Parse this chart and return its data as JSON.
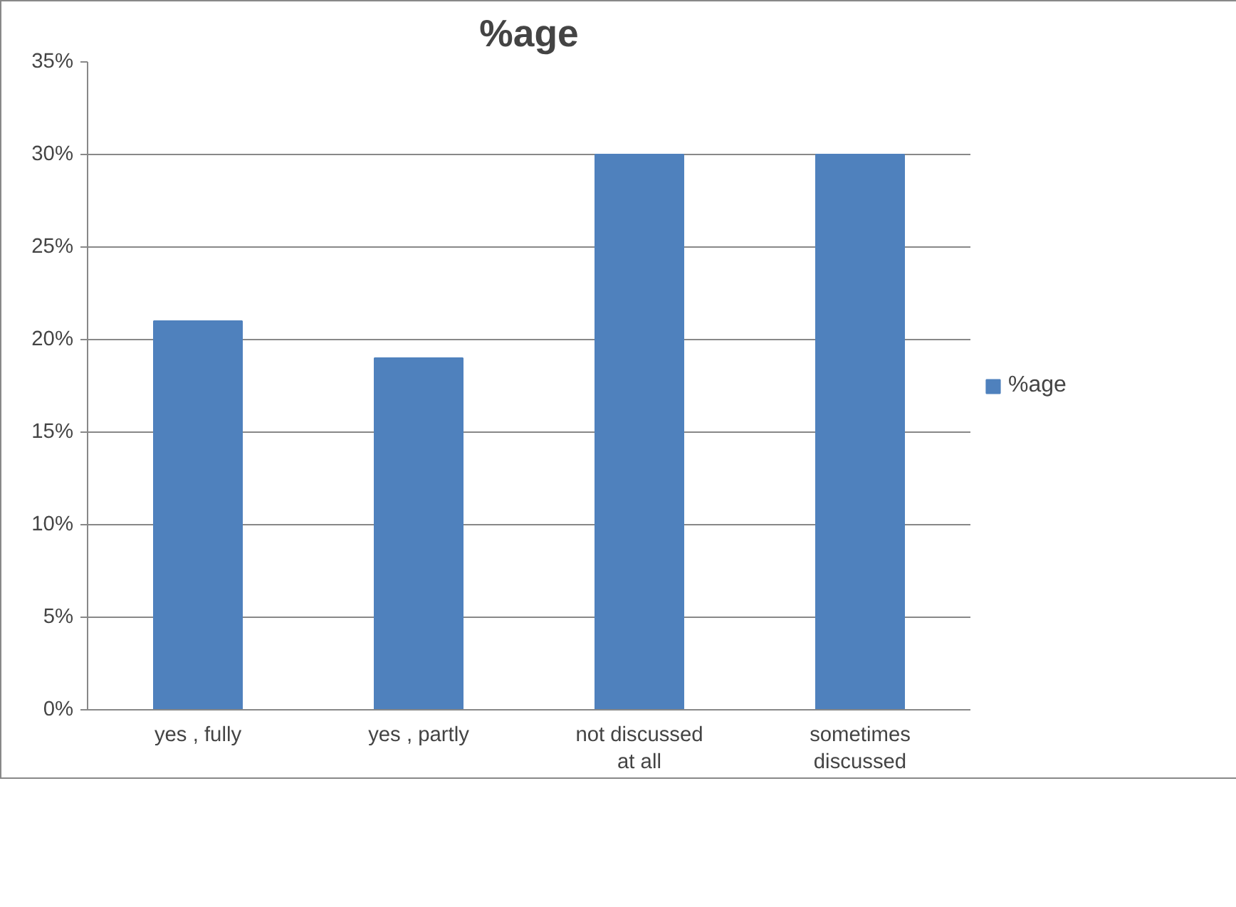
{
  "chart_data": {
    "type": "bar",
    "title": "%age",
    "categories": [
      "yes , fully",
      "yes , partly",
      "not discussed at all",
      "sometimes discussed"
    ],
    "series": [
      {
        "name": "%age",
        "color": "#4f81bd",
        "values": [
          21,
          19,
          30,
          30
        ]
      }
    ],
    "ylim": [
      0,
      35
    ],
    "yticks": [
      {
        "value": 0,
        "label": "0%"
      },
      {
        "value": 5,
        "label": "5%"
      },
      {
        "value": 10,
        "label": "10%"
      },
      {
        "value": 15,
        "label": "15%"
      },
      {
        "value": 20,
        "label": "20%"
      },
      {
        "value": 25,
        "label": "25%"
      },
      {
        "value": 30,
        "label": "30%"
      },
      {
        "value": 35,
        "label": "35%"
      }
    ],
    "grid": "y",
    "legend": "right"
  }
}
